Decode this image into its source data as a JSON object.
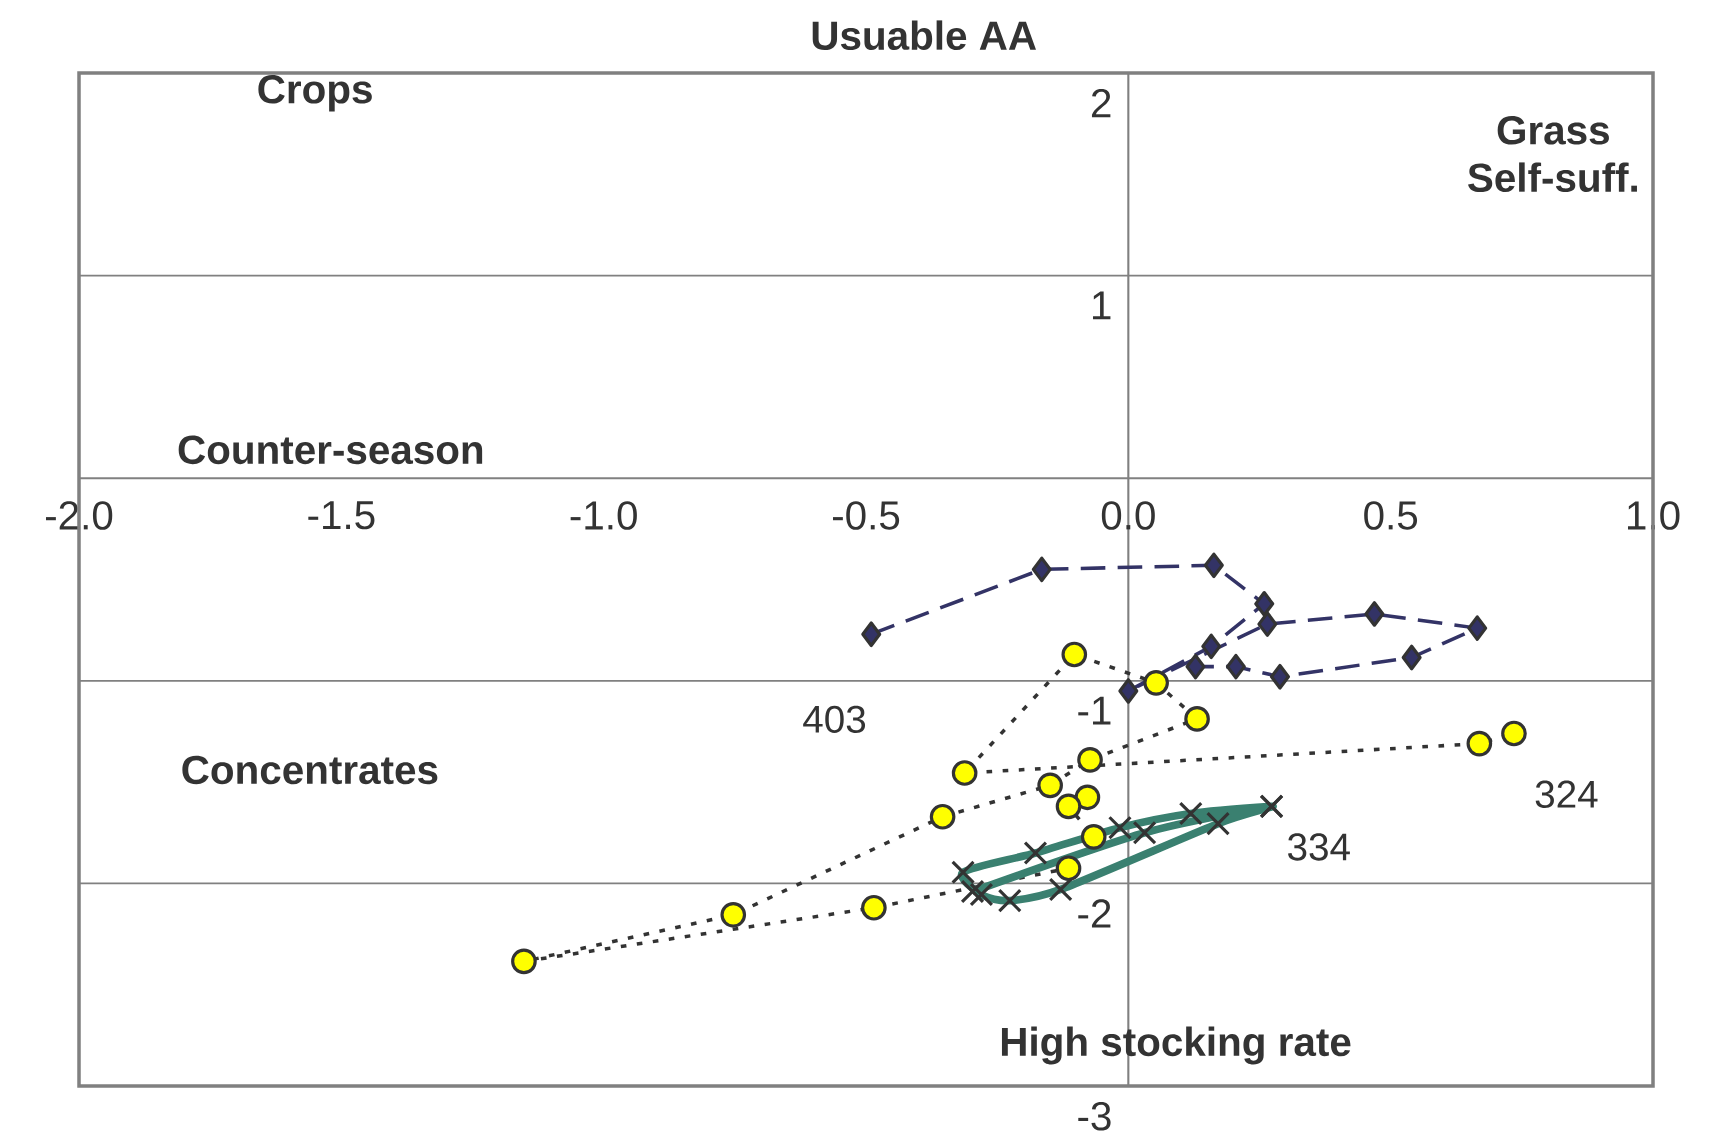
{
  "chart_data": {
    "type": "line",
    "ylabel": "Usuable AA",
    "annotations": [
      "Crops",
      "Grass Self-suff.",
      "Counter-season",
      "Concentrates",
      "High stocking rate"
    ],
    "xlim": [
      -2,
      1
    ],
    "ylim": [
      -3,
      2
    ],
    "xticks": [
      {
        "value": -2,
        "label": "-2.0"
      },
      {
        "value": -1.5,
        "label": "-1.5"
      },
      {
        "value": -1,
        "label": "-1.0"
      },
      {
        "value": -0.5,
        "label": "-0.5"
      },
      {
        "value": 0,
        "label": "0.0"
      },
      {
        "value": 0.5,
        "label": "0.5"
      },
      {
        "value": 1,
        "label": "1.0"
      }
    ],
    "yticks": [
      2,
      1,
      -1,
      -2,
      -3
    ],
    "grid": "y",
    "series": [
      {
        "name": "403",
        "color": "#333366",
        "marker": "diamond",
        "line_style": "dashed",
        "x": [
          -0.49,
          -0.165,
          0.163,
          0.259,
          0.158,
          0.0,
          0.265,
          0.469,
          0.665,
          0.54,
          0.289,
          0.205,
          0.128
        ],
        "values": [
          -0.77,
          -0.45,
          -0.43,
          -0.62,
          -0.83,
          -1.05,
          -0.72,
          -0.67,
          -0.74,
          -0.885,
          -0.98,
          -0.93,
          -0.93
        ]
      },
      {
        "name": "324",
        "color": "#ffff00",
        "marker": "circle",
        "line_style": "dotted",
        "x": [
          -0.078,
          -0.114,
          -0.066,
          -0.114,
          -0.485,
          -1.152,
          -0.753,
          -0.354,
          -0.149,
          -0.073,
          0.131,
          0.053,
          -0.103,
          -0.312,
          0.669,
          0.735
        ],
        "values": [
          -1.575,
          -1.62,
          -1.77,
          -1.925,
          -2.12,
          -2.385,
          -2.155,
          -1.671,
          -1.516,
          -1.39,
          -1.188,
          -1.01,
          -0.87,
          -1.455,
          -1.31,
          -1.26
        ]
      },
      {
        "name": "334",
        "color": "#3a8070",
        "marker": "cross",
        "line_style": "solid",
        "x": [
          0.273,
          0.119,
          -0.016,
          -0.177,
          -0.315,
          -0.28,
          -0.226,
          -0.129,
          0.171,
          0.273,
          0.031,
          -0.297
        ],
        "values": [
          -1.62,
          -1.655,
          -1.725,
          -1.85,
          -1.945,
          -2.055,
          -2.085,
          -2.03,
          -1.705,
          -1.62,
          -1.75,
          -2.04
        ]
      }
    ]
  }
}
